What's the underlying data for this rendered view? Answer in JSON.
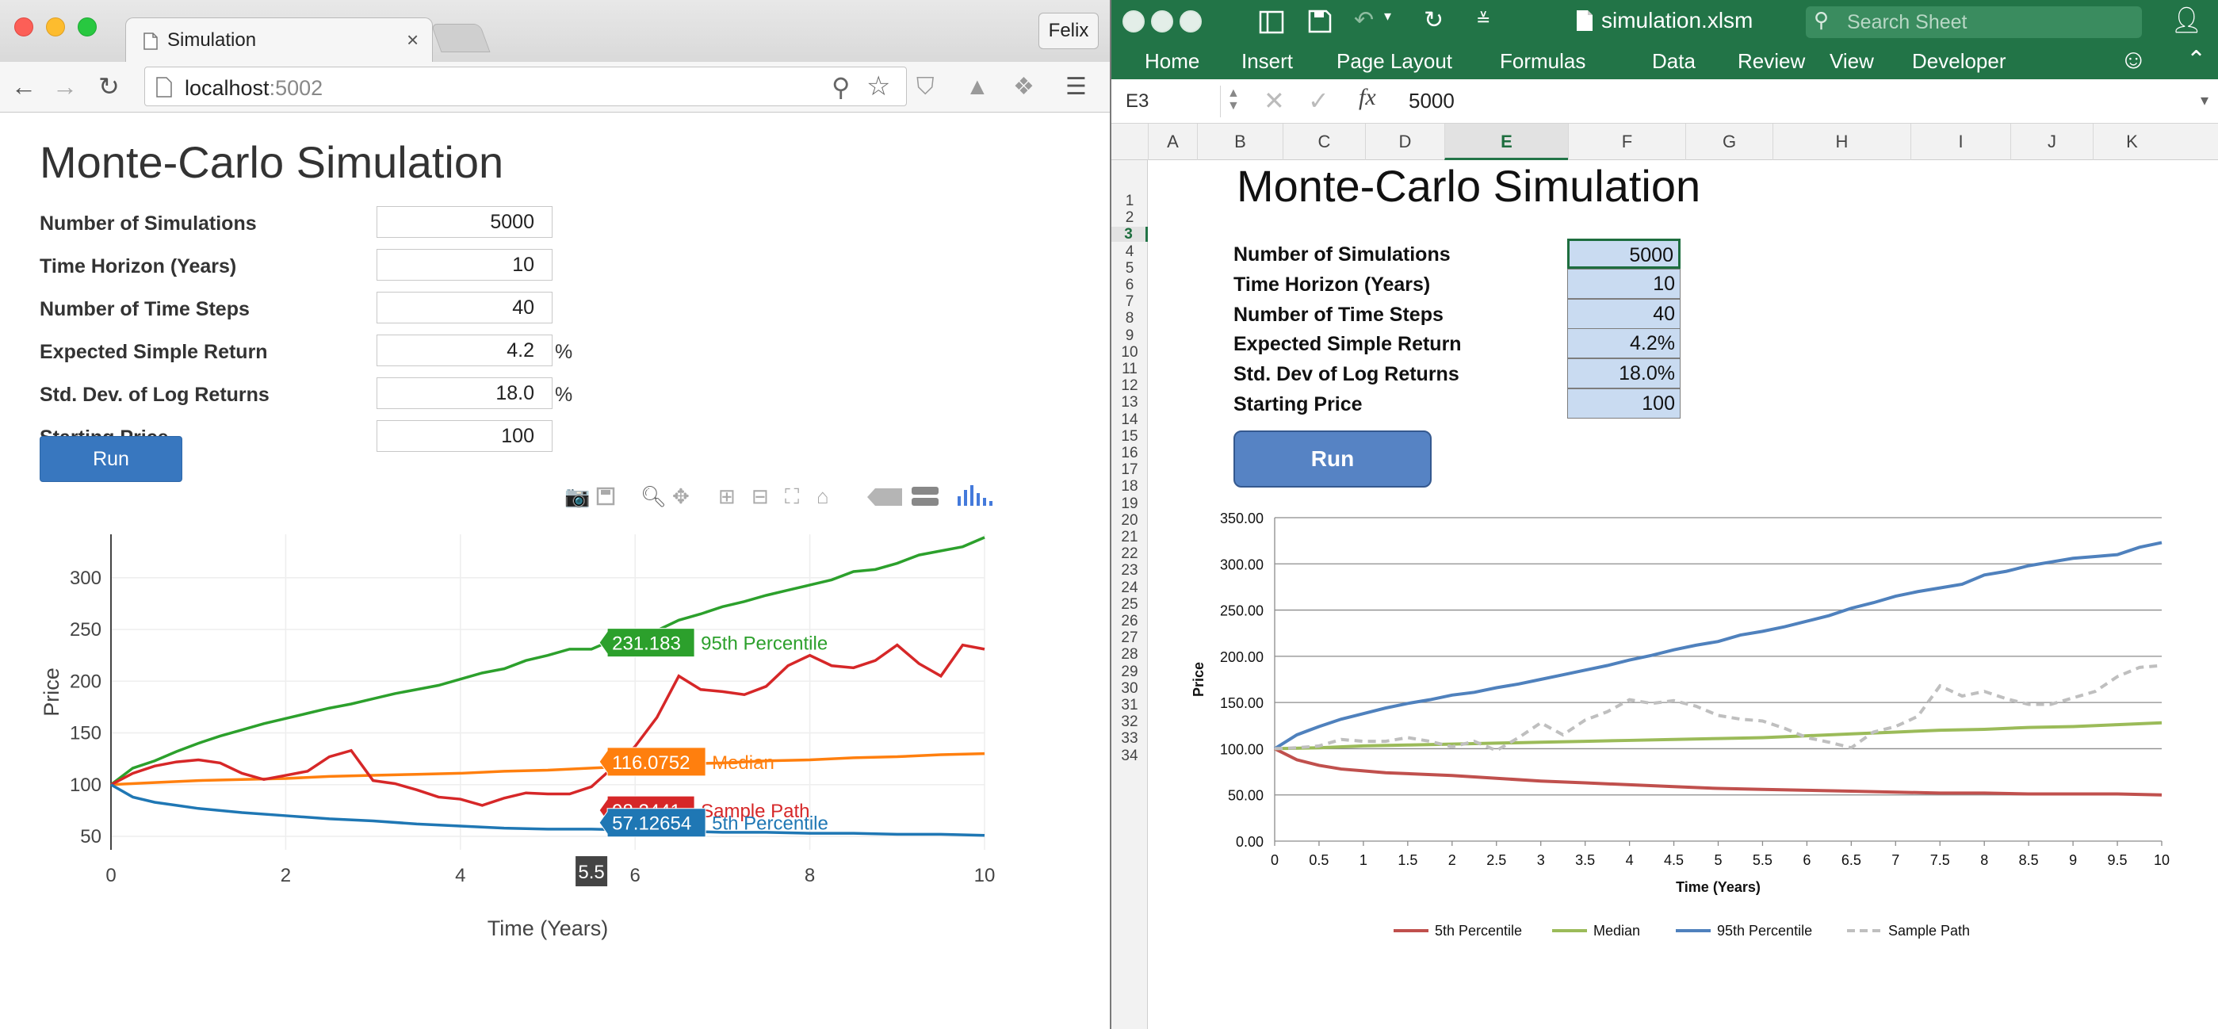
{
  "browser": {
    "tab_title": "Simulation",
    "profile_name": "Felix",
    "url_host": "localhost",
    "url_port": ":5002",
    "page_title": "Monte-Carlo Simulation",
    "fields": [
      {
        "label": "Number of Simulations",
        "value": "5000",
        "suffix": ""
      },
      {
        "label": "Time Horizon (Years)",
        "value": "10",
        "suffix": ""
      },
      {
        "label": "Number of Time Steps",
        "value": "40",
        "suffix": ""
      },
      {
        "label": "Expected Simple Return",
        "value": "4.2",
        "suffix": "%"
      },
      {
        "label": "Std. Dev. of Log Returns",
        "value": "18.0",
        "suffix": "%"
      },
      {
        "label": "Starting Price",
        "value": "100",
        "suffix": ""
      }
    ],
    "run_label": "Run",
    "modebar_icons": [
      "camera-icon",
      "save-icon",
      "zoom-icon",
      "pan-icon",
      "zoom-in-icon",
      "zoom-out-icon",
      "autoscale-icon",
      "reset-axes-icon",
      "hover-closest-icon",
      "hover-compare-icon",
      "plotly-logo-icon"
    ]
  },
  "excel": {
    "file_name": "simulation.xlsm",
    "search_placeholder": "Search Sheet",
    "ribbon_tabs": [
      "Home",
      "Insert",
      "Page Layout",
      "Formulas",
      "Data",
      "Review",
      "View",
      "Developer"
    ],
    "name_box": "E3",
    "formula_value": "5000",
    "columns": [
      "A",
      "B",
      "C",
      "D",
      "E",
      "F",
      "G",
      "H",
      "I",
      "J",
      "K"
    ],
    "rows": [
      "1",
      "2",
      "3",
      "4",
      "5",
      "6",
      "7",
      "8",
      "9",
      "10",
      "11",
      "12",
      "13",
      "14",
      "15",
      "16",
      "17",
      "18",
      "19",
      "20",
      "21",
      "22",
      "23",
      "24",
      "25",
      "26",
      "27",
      "28",
      "29",
      "30",
      "31",
      "32",
      "33",
      "34"
    ],
    "title": "Monte-Carlo Simulation",
    "fields": [
      {
        "label": "Number of Simulations",
        "value": "5000"
      },
      {
        "label": "Time Horizon (Years)",
        "value": "10"
      },
      {
        "label": "Number of Time Steps",
        "value": "40"
      },
      {
        "label": "Expected Simple Return",
        "value": "4.2%"
      },
      {
        "label": "Std. Dev of Log Returns",
        "value": "18.0%"
      },
      {
        "label": "Starting Price",
        "value": "100"
      }
    ],
    "run_label": "Run"
  },
  "chart_data": [
    {
      "type": "line",
      "xlabel": "Time (Years)",
      "ylabel": "Price",
      "xlim": [
        0,
        10
      ],
      "ylim": [
        37,
        342
      ],
      "xticks": [
        "0",
        "2",
        "4",
        "6",
        "8",
        "10"
      ],
      "yticks": [
        "50",
        "100",
        "150",
        "200",
        "250",
        "300"
      ],
      "grid": true,
      "legend": "none",
      "hover_x": "5.5",
      "series": [
        {
          "name": "95th Percentile",
          "color": "#2ca02c",
          "hover": "231.183",
          "x": [
            0,
            0.25,
            0.5,
            0.75,
            1,
            1.25,
            1.5,
            1.75,
            2,
            2.25,
            2.5,
            2.75,
            3,
            3.25,
            3.5,
            3.75,
            4,
            4.25,
            4.5,
            4.75,
            5,
            5.25,
            5.5,
            5.75,
            6,
            6.25,
            6.5,
            6.75,
            7,
            7.25,
            7.5,
            7.75,
            8,
            8.25,
            8.5,
            8.75,
            9,
            9.25,
            9.5,
            9.75,
            10
          ],
          "y": [
            100,
            116,
            123,
            132,
            140,
            147,
            153,
            159,
            164,
            169,
            174,
            178,
            183,
            188,
            192,
            196,
            202,
            208,
            212,
            220,
            225,
            231,
            231,
            240,
            247,
            249,
            259,
            265,
            272,
            277,
            283,
            288,
            293,
            298,
            306,
            308,
            314,
            322,
            326,
            330,
            339
          ]
        },
        {
          "name": "Median",
          "color": "#ff7f0e",
          "hover": "116.0752",
          "x": [
            0,
            0.5,
            1,
            1.5,
            2,
            2.5,
            3,
            3.5,
            4,
            4.5,
            5,
            5.5,
            6,
            6.5,
            7,
            7.5,
            8,
            8.5,
            9,
            9.5,
            10
          ],
          "y": [
            100,
            102,
            104,
            105,
            106,
            108,
            109,
            110,
            111,
            113,
            114,
            116,
            118,
            120,
            121,
            123,
            124,
            126,
            127,
            129,
            130
          ]
        },
        {
          "name": "Sample Path",
          "color": "#d62728",
          "hover": "98.2441",
          "x": [
            0,
            0.25,
            0.5,
            0.75,
            1,
            1.25,
            1.5,
            1.75,
            2,
            2.25,
            2.5,
            2.75,
            3,
            3.25,
            3.5,
            3.75,
            4,
            4.25,
            4.5,
            4.75,
            5,
            5.25,
            5.5,
            5.75,
            6,
            6.25,
            6.5,
            6.75,
            7,
            7.25,
            7.5,
            7.75,
            8,
            8.25,
            8.5,
            8.75,
            9,
            9.25,
            9.5,
            9.75,
            10
          ],
          "y": [
            100,
            111,
            118,
            122,
            124,
            121,
            111,
            105,
            109,
            113,
            127,
            133,
            104,
            101,
            95,
            88,
            86,
            80,
            87,
            92,
            91,
            91,
            98,
            117,
            137,
            165,
            205,
            192,
            190,
            187,
            195,
            215,
            225,
            215,
            213,
            220,
            235,
            217,
            205,
            235,
            231
          ]
        },
        {
          "name": "5th Percentile",
          "color": "#1f77b4",
          "hover": "57.12654",
          "x": [
            0,
            0.25,
            0.5,
            0.75,
            1,
            1.5,
            2,
            2.5,
            3,
            3.5,
            4,
            4.5,
            5,
            5.5,
            6,
            6.5,
            7,
            7.5,
            8,
            8.5,
            9,
            9.5,
            10
          ],
          "y": [
            100,
            88,
            83,
            80,
            77,
            73,
            70,
            67,
            65,
            62,
            60,
            58,
            57,
            57,
            56,
            55,
            54,
            54,
            53,
            53,
            52,
            52,
            51
          ]
        }
      ]
    },
    {
      "type": "line",
      "xlabel": "Time (Years)",
      "ylabel": "Price",
      "xlim": [
        0,
        10
      ],
      "ylim": [
        0,
        350
      ],
      "xticks": [
        "0",
        "0.5",
        "1",
        "1.5",
        "2",
        "2.5",
        "3",
        "3.5",
        "4",
        "4.5",
        "5",
        "5.5",
        "6",
        "6.5",
        "7",
        "7.5",
        "8",
        "8.5",
        "9",
        "9.5",
        "10"
      ],
      "yticks": [
        "0.00",
        "50.00",
        "100.00",
        "150.00",
        "200.00",
        "250.00",
        "300.00",
        "350.00"
      ],
      "grid": true,
      "legend": "bottom",
      "series": [
        {
          "name": "5th Percentile",
          "color": "#c0504d",
          "dash": false,
          "x": [
            0,
            0.25,
            0.5,
            0.75,
            1,
            1.25,
            1.5,
            2,
            2.5,
            3,
            3.5,
            4,
            4.5,
            5,
            5.5,
            6,
            6.5,
            7,
            7.5,
            8,
            8.5,
            9,
            9.5,
            10
          ],
          "y": [
            100,
            88,
            82,
            78,
            76,
            74,
            73,
            71,
            68,
            65,
            63,
            61,
            59,
            57,
            56,
            55,
            54,
            53,
            52,
            52,
            51,
            51,
            51,
            50
          ]
        },
        {
          "name": "Median",
          "color": "#9bbb59",
          "dash": false,
          "x": [
            0,
            0.5,
            1,
            1.5,
            2,
            2.5,
            3,
            3.5,
            4,
            4.5,
            5,
            5.5,
            6,
            6.5,
            7,
            7.5,
            8,
            8.5,
            9,
            9.5,
            10
          ],
          "y": [
            100,
            101,
            103,
            104,
            105,
            106,
            107,
            108,
            109,
            110,
            111,
            112,
            114,
            116,
            118,
            120,
            121,
            123,
            124,
            126,
            128
          ]
        },
        {
          "name": "95th Percentile",
          "color": "#4f81bd",
          "dash": false,
          "x": [
            0,
            0.25,
            0.5,
            0.75,
            1,
            1.25,
            1.5,
            1.75,
            2,
            2.25,
            2.5,
            2.75,
            3,
            3.25,
            3.5,
            3.75,
            4,
            4.25,
            4.5,
            4.75,
            5,
            5.25,
            5.5,
            5.75,
            6,
            6.25,
            6.5,
            6.75,
            7,
            7.25,
            7.5,
            7.75,
            8,
            8.25,
            8.5,
            8.75,
            9,
            9.25,
            9.5,
            9.75,
            10
          ],
          "y": [
            100,
            115,
            124,
            132,
            138,
            144,
            149,
            153,
            158,
            161,
            166,
            170,
            175,
            180,
            185,
            190,
            196,
            201,
            207,
            212,
            216,
            223,
            227,
            232,
            238,
            244,
            252,
            258,
            265,
            270,
            274,
            278,
            288,
            292,
            298,
            302,
            306,
            308,
            310,
            318,
            323
          ]
        },
        {
          "name": "Sample Path",
          "color": "#bfbfbf",
          "dash": true,
          "x": [
            0,
            0.25,
            0.5,
            0.75,
            1,
            1.25,
            1.5,
            1.75,
            2,
            2.25,
            2.5,
            2.75,
            3,
            3.25,
            3.5,
            3.75,
            4,
            4.25,
            4.5,
            4.75,
            5,
            5.25,
            5.5,
            5.75,
            6,
            6.25,
            6.5,
            6.75,
            7,
            7.25,
            7.5,
            7.75,
            8,
            8.25,
            8.5,
            8.75,
            9,
            9.25,
            9.5,
            9.75,
            10
          ],
          "y": [
            100,
            101,
            103,
            110,
            108,
            108,
            112,
            108,
            102,
            108,
            98,
            112,
            128,
            115,
            131,
            140,
            153,
            149,
            152,
            146,
            136,
            132,
            130,
            122,
            112,
            107,
            101,
            118,
            124,
            135,
            168,
            157,
            162,
            154,
            148,
            148,
            155,
            162,
            178,
            188,
            190
          ]
        }
      ]
    }
  ]
}
